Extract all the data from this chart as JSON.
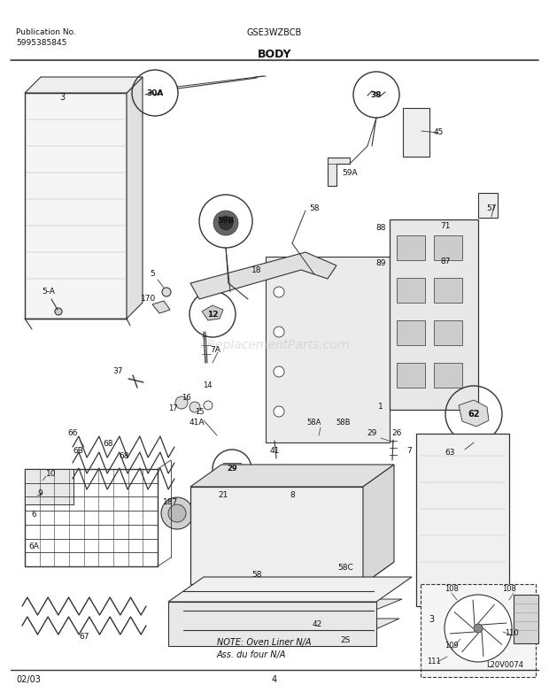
{
  "title": "BODY",
  "model": "GSE3WZBCB",
  "pub_no": "Publication No.",
  "pub_num": "5995385845",
  "date": "02/03",
  "page": "4",
  "note_line1": "NOTE: Oven Liner N/A",
  "note_line2": "Ass. du four N/A",
  "watermark": "eReplacementParts.com",
  "logo": "L20V0074",
  "bg_color": "#ffffff",
  "lc": "#333333",
  "tc": "#111111",
  "fig_width": 6.2,
  "fig_height": 7.91,
  "dpi": 100
}
